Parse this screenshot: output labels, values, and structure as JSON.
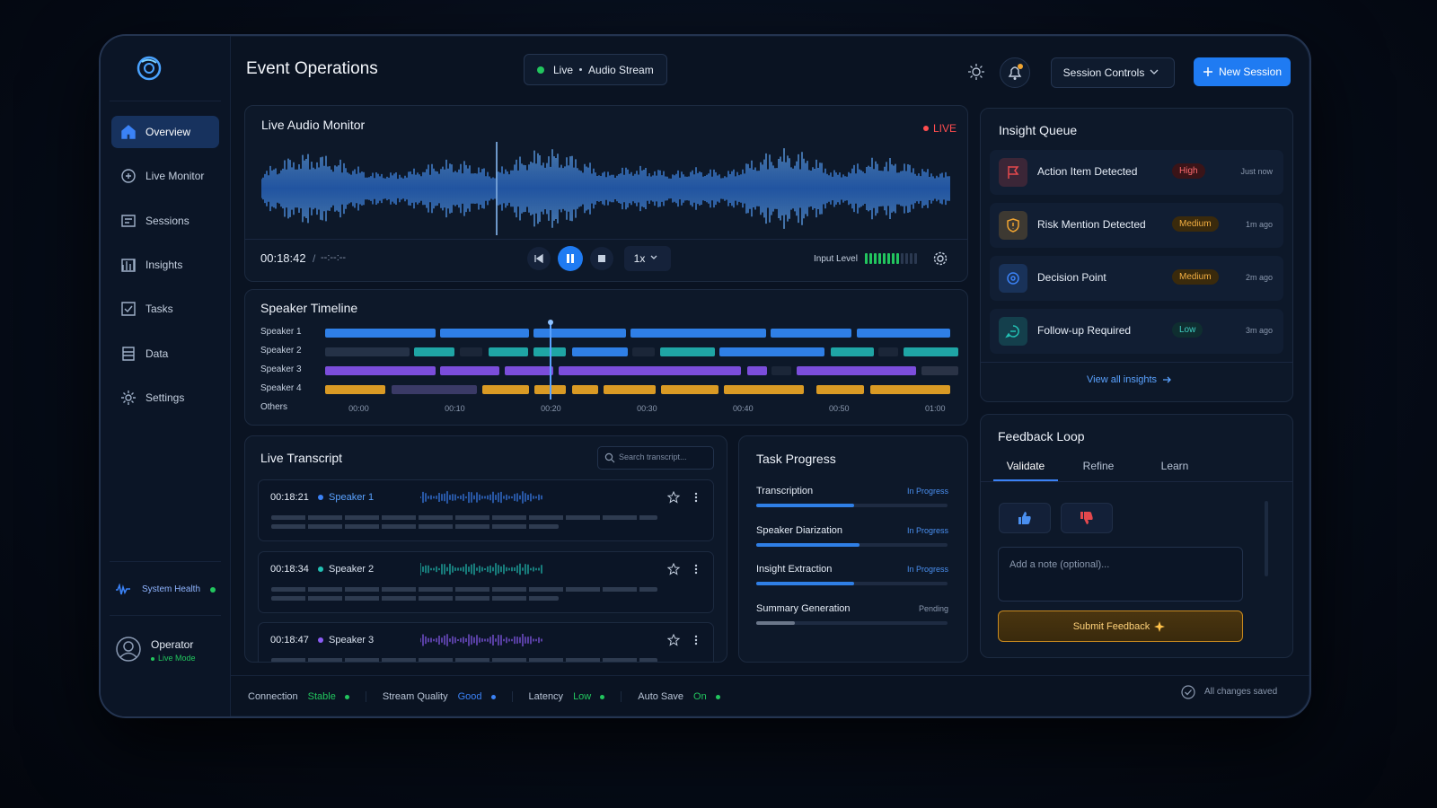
{
  "header": {
    "title": "Event Operations",
    "stream_status": "Live",
    "stream_name": "Audio Stream",
    "session_controls": "Session Controls",
    "new_session": "New Session"
  },
  "sidebar": {
    "nav": [
      "Overview",
      "Live Monitor",
      "Sessions",
      "Insights",
      "Tasks",
      "Data",
      "Settings"
    ],
    "active": 0,
    "system_health": "System Health",
    "user_name": "Operator",
    "user_mode": "Live Mode"
  },
  "audio_monitor": {
    "title": "Live Audio Monitor",
    "live": "LIVE",
    "elapsed": "00:18:42",
    "total": "--:--:--",
    "speed": "1x",
    "input_level_label": "Input Level",
    "input_level": 8,
    "input_level_max": 12
  },
  "speaker_timeline": {
    "title": "Speaker Timeline",
    "xlim": [
      -3.5,
      62.5
    ],
    "xticks": [
      {
        "value": 0,
        "label": "00:00"
      },
      {
        "value": 10,
        "label": "00:10"
      },
      {
        "value": 20,
        "label": "00:20"
      },
      {
        "value": 30,
        "label": "00:30"
      },
      {
        "value": 40,
        "label": "00:40"
      },
      {
        "value": 50,
        "label": "00:50"
      },
      {
        "value": 60,
        "label": "01:00"
      }
    ],
    "playhead": 20,
    "rows": [
      {
        "name": "Speaker 1",
        "segments": [
          {
            "start": -3.5,
            "end": 8.0,
            "color": "#2f7fe6"
          },
          {
            "start": 8.5,
            "end": 17.7,
            "color": "#2f7fe6"
          },
          {
            "start": 18.2,
            "end": 27.8,
            "color": "#2f7fe6"
          },
          {
            "start": 28.3,
            "end": 42.4,
            "color": "#2f7fe6"
          },
          {
            "start": 42.9,
            "end": 51.3,
            "color": "#2f7fe6"
          },
          {
            "start": 51.8,
            "end": 61.6,
            "color": "#2f7fe6"
          }
        ]
      },
      {
        "name": "Speaker 2",
        "segments": [
          {
            "start": -3.5,
            "end": 5.3,
            "color": "#253247"
          },
          {
            "start": 5.8,
            "end": 10.0,
            "color": "#1fa5a5"
          },
          {
            "start": 10.5,
            "end": 12.9,
            "color": "#1b2638"
          },
          {
            "start": 13.5,
            "end": 17.6,
            "color": "#1fa5a5"
          },
          {
            "start": 18.2,
            "end": 21.6,
            "color": "#1fa5a5"
          },
          {
            "start": 22.2,
            "end": 28.0,
            "color": "#2f7fe6"
          },
          {
            "start": 28.5,
            "end": 30.8,
            "color": "#1b2638"
          },
          {
            "start": 31.4,
            "end": 37.1,
            "color": "#1fa5a5"
          },
          {
            "start": 37.5,
            "end": 48.5,
            "color": "#2f7fe6"
          },
          {
            "start": 49.1,
            "end": 53.6,
            "color": "#1fa5a5"
          },
          {
            "start": 54.1,
            "end": 56.1,
            "color": "#1b2638"
          },
          {
            "start": 56.7,
            "end": 62.4,
            "color": "#1fa5a5"
          }
        ]
      },
      {
        "name": "Speaker 3",
        "segments": [
          {
            "start": -3.5,
            "end": 8.0,
            "color": "#7b4ddb"
          },
          {
            "start": 8.5,
            "end": 14.6,
            "color": "#7b4ddb"
          },
          {
            "start": 15.2,
            "end": 20.2,
            "color": "#7b4ddb"
          },
          {
            "start": 20.8,
            "end": 39.8,
            "color": "#7b4ddb"
          },
          {
            "start": 40.4,
            "end": 42.5,
            "color": "#7b4ddb"
          },
          {
            "start": 43.0,
            "end": 45.0,
            "color": "#1b2638"
          },
          {
            "start": 45.6,
            "end": 58.0,
            "color": "#7b4ddb"
          },
          {
            "start": 58.6,
            "end": 62.4,
            "color": "#2a3346"
          }
        ]
      },
      {
        "name": "Speaker 4",
        "segments": [
          {
            "start": -3.5,
            "end": 2.8,
            "color": "#d99a24"
          },
          {
            "start": 3.4,
            "end": 12.3,
            "color": "#3a3a66"
          },
          {
            "start": 12.9,
            "end": 17.7,
            "color": "#d99a24"
          },
          {
            "start": 18.3,
            "end": 21.6,
            "color": "#d99a24"
          },
          {
            "start": 22.2,
            "end": 24.9,
            "color": "#d99a24"
          },
          {
            "start": 25.5,
            "end": 30.9,
            "color": "#d99a24"
          },
          {
            "start": 31.5,
            "end": 37.4,
            "color": "#d99a24"
          },
          {
            "start": 38.0,
            "end": 46.3,
            "color": "#d99a24"
          },
          {
            "start": 47.6,
            "end": 52.6,
            "color": "#d99a24"
          },
          {
            "start": 53.2,
            "end": 61.6,
            "color": "#d99a24"
          }
        ]
      },
      {
        "name": "Others",
        "segments": []
      }
    ]
  },
  "transcript": {
    "title": "Live Transcript",
    "search_placeholder": "Search transcript...",
    "entries": [
      {
        "time": "00:18:21",
        "speaker": "Speaker 1",
        "color": "#3b82f6"
      },
      {
        "time": "00:18:34",
        "speaker": "Speaker 2",
        "color": "#22c1b4"
      },
      {
        "time": "00:18:47",
        "speaker": "Speaker 3",
        "color": "#8b5cf6"
      }
    ]
  },
  "tasks": {
    "title": "Task Progress",
    "items": [
      {
        "name": "Transcription",
        "status": "In Progress",
        "progress": 51
      },
      {
        "name": "Speaker Diarization",
        "status": "In Progress",
        "progress": 54
      },
      {
        "name": "Insight Extraction",
        "status": "In Progress",
        "progress": 51
      },
      {
        "name": "Summary Generation",
        "status": "Pending",
        "progress": 20
      }
    ]
  },
  "insights": {
    "title": "Insight Queue",
    "items": [
      {
        "title": "Action Item Detected",
        "priority": "High",
        "time": "Just now",
        "color": "#e5484d"
      },
      {
        "title": "Risk Mention Detected",
        "priority": "Medium",
        "time": "1m ago",
        "color": "#f0a431"
      },
      {
        "title": "Decision Point",
        "priority": "Medium",
        "time": "2m ago",
        "color": "#3b82f6"
      },
      {
        "title": "Follow-up Required",
        "priority": "Low",
        "time": "3m ago",
        "color": "#22c1b4"
      }
    ],
    "view_all": "View all insights"
  },
  "feedback": {
    "title": "Feedback Loop",
    "tabs": [
      "Validate",
      "Refine",
      "Learn"
    ],
    "active_tab": 0,
    "note_placeholder": "Add a note (optional)...",
    "submit": "Submit Feedback"
  },
  "status_bar": {
    "items": [
      {
        "label": "Connection",
        "value": "Stable",
        "color": "#22c55e"
      },
      {
        "label": "Stream Quality",
        "value": "Good",
        "color": "#3b82f6"
      },
      {
        "label": "Latency",
        "value": "Low",
        "color": "#22c55e"
      },
      {
        "label": "Auto Save",
        "value": "On",
        "color": "#22c55e"
      }
    ],
    "saved": "All changes saved"
  }
}
